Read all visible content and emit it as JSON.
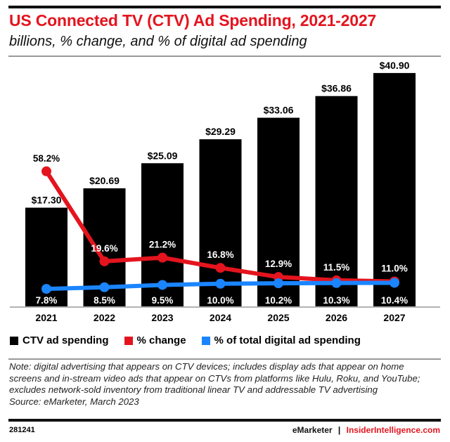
{
  "title": "US Connected TV (CTV) Ad Spending, 2021-2027",
  "subtitle": "billions, % change, and % of digital ad spending",
  "chart_data": {
    "type": "bar",
    "categories": [
      "2021",
      "2022",
      "2023",
      "2024",
      "2025",
      "2026",
      "2027"
    ],
    "series": [
      {
        "name": "CTV ad spending",
        "type": "bar",
        "color": "#000000",
        "values": [
          17.3,
          20.69,
          25.09,
          29.29,
          33.06,
          36.86,
          40.9
        ],
        "labels": [
          "$17.30",
          "$20.69",
          "$25.09",
          "$29.29",
          "$33.06",
          "$36.86",
          "$40.90"
        ]
      },
      {
        "name": "% change",
        "type": "line",
        "color": "#e4141e",
        "values": [
          58.2,
          19.6,
          21.2,
          16.8,
          12.9,
          11.5,
          11.0
        ],
        "labels": [
          "58.2%",
          "19.6%",
          "21.2%",
          "16.8%",
          "12.9%",
          "11.5%",
          "11.0%"
        ]
      },
      {
        "name": "% of total digital ad spending",
        "type": "line",
        "color": "#1a85ff",
        "values": [
          7.8,
          8.5,
          9.5,
          10.0,
          10.2,
          10.3,
          10.4
        ],
        "labels": [
          "7.8%",
          "8.5%",
          "9.5%",
          "10.0%",
          "10.2%",
          "10.3%",
          "10.4%"
        ]
      }
    ],
    "ylim": [
      0,
      42
    ],
    "legend": "bottom"
  },
  "legend": [
    "CTV ad spending",
    "% change",
    "% of total digital ad spending"
  ],
  "note": "Note: digital advertising that appears on CTV devices; includes display ads that appear on home screens and in-stream video ads that appear on CTVs from platforms like Hulu, Roku, and YouTube; excludes network-sold inventory from traditional linear TV and addressable TV advertising",
  "source": "Source: eMarketer, March 2023",
  "footer": {
    "id": "281241",
    "brand1": "eMarketer",
    "sep": "|",
    "brand2": "InsiderIntelligence.com"
  }
}
